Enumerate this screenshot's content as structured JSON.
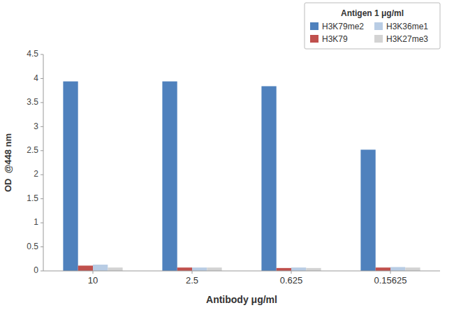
{
  "chart_data": {
    "type": "bar",
    "xlabel": "Antibody μg/ml",
    "ylabel": "OD  @448 nm",
    "legend_title": "Antigen 1 μg/ml",
    "categories": [
      "10",
      "2.5",
      "0.625",
      "0.15625"
    ],
    "series": [
      {
        "name": "H3K79me2",
        "color": "#4F81BD",
        "values": [
          3.94,
          3.94,
          3.84,
          2.52
        ]
      },
      {
        "name": "H3K79",
        "color": "#C0504D",
        "values": [
          0.11,
          0.07,
          0.06,
          0.07
        ]
      },
      {
        "name": "H3K36me1",
        "color": "#B8CCE4",
        "values": [
          0.13,
          0.07,
          0.07,
          0.08
        ]
      },
      {
        "name": "H3K27me3",
        "color": "#D3D3D3",
        "values": [
          0.07,
          0.07,
          0.06,
          0.07
        ]
      }
    ],
    "ylim": [
      0,
      4.5
    ],
    "yticks": [
      0,
      0.5,
      1,
      1.5,
      2,
      2.5,
      3,
      3.5,
      4,
      4.5
    ],
    "grid": false,
    "legend": "upper right"
  }
}
